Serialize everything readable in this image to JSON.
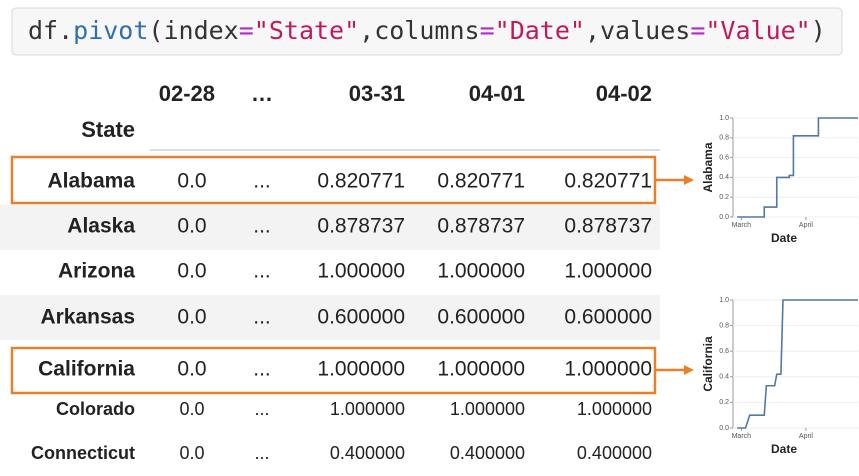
{
  "code": {
    "tokens": [
      "df.",
      "pivot",
      "(index",
      "=",
      "\"State\"",
      ",columns",
      "=",
      "\"Date\"",
      ",values",
      "=",
      "\"Value\"",
      ")"
    ]
  },
  "table": {
    "columns": [
      "02-28",
      "…",
      "03-31",
      "04-01",
      "04-02"
    ],
    "index_name": "State",
    "rows": [
      [
        "Alabama",
        "0.0",
        "...",
        "0.820771",
        "0.820771",
        "0.820771"
      ],
      [
        "Alaska",
        "0.0",
        "...",
        "0.878737",
        "0.878737",
        "0.878737"
      ],
      [
        "Arizona",
        "0.0",
        "...",
        "1.000000",
        "1.000000",
        "1.000000"
      ],
      [
        "Arkansas",
        "0.0",
        "...",
        "0.600000",
        "0.600000",
        "0.600000"
      ],
      [
        "California",
        "0.0",
        "...",
        "1.000000",
        "1.000000",
        "1.000000"
      ],
      [
        "Colorado",
        "0.0",
        "...",
        "1.000000",
        "1.000000",
        "1.000000"
      ],
      [
        "Connecticut",
        "0.0",
        "...",
        "0.400000",
        "0.400000",
        "0.400000"
      ]
    ]
  },
  "chart_data": [
    {
      "type": "line",
      "ylabel": "Alabama",
      "xlabel": "Date",
      "color": "#4e79a7",
      "x": [
        -2,
        11,
        11,
        17,
        17,
        23,
        23,
        25,
        25,
        37,
        37,
        56
      ],
      "values": [
        0,
        0,
        0.1,
        0.1,
        0.4,
        0.4,
        0.42,
        0.42,
        0.82,
        0.82,
        1,
        1
      ],
      "xlim": [
        -4,
        56
      ],
      "xticks": [
        {
          "value": 0,
          "label": "March"
        },
        {
          "value": 31,
          "label": "April"
        }
      ],
      "ylim": [
        0,
        1
      ],
      "yticks": [
        {
          "value": 0,
          "label": "0.0"
        },
        {
          "value": 0.2,
          "label": "0.2"
        },
        {
          "value": 0.4,
          "label": "0.4"
        },
        {
          "value": 0.6,
          "label": "0.6"
        },
        {
          "value": 0.8,
          "label": "0.8"
        },
        {
          "value": 1,
          "label": "1.0"
        }
      ]
    },
    {
      "type": "line",
      "ylabel": "California",
      "xlabel": "Date",
      "color": "#4e79a7",
      "x": [
        -2,
        2,
        4,
        11,
        12,
        16,
        17,
        19,
        20,
        56
      ],
      "values": [
        0,
        0,
        0.1,
        0.1,
        0.33,
        0.33,
        0.42,
        0.42,
        1,
        1
      ],
      "xlim": [
        -4,
        56
      ],
      "xticks": [
        {
          "value": 0,
          "label": "March"
        },
        {
          "value": 31,
          "label": "April"
        }
      ],
      "ylim": [
        0,
        1
      ],
      "yticks": [
        {
          "value": 0,
          "label": "0.0"
        },
        {
          "value": 0.2,
          "label": "0.2"
        },
        {
          "value": 0.4,
          "label": "0.4"
        },
        {
          "value": 0.6,
          "label": "0.6"
        },
        {
          "value": 0.8,
          "label": "0.8"
        },
        {
          "value": 1,
          "label": "1.0"
        }
      ]
    }
  ]
}
